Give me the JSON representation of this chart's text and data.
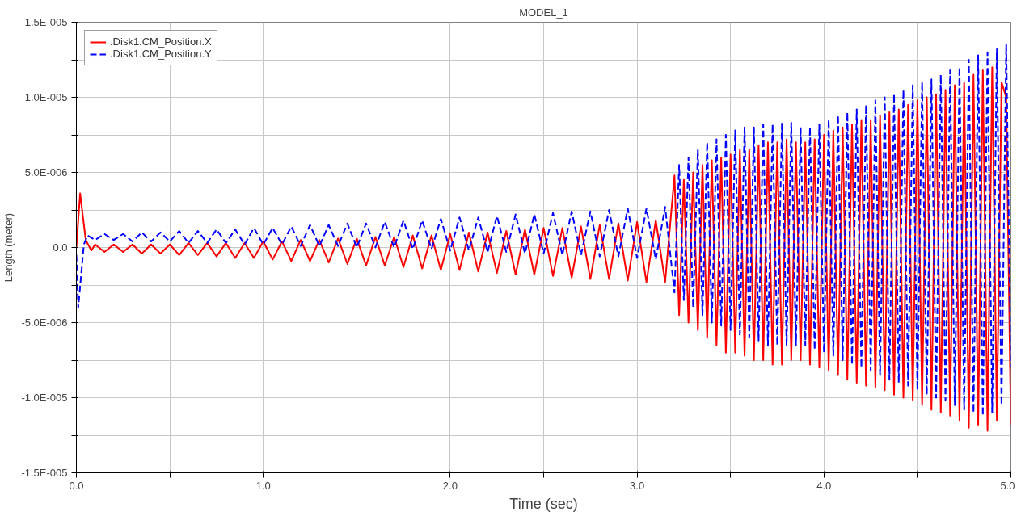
{
  "chart_data": {
    "type": "line",
    "title": "MODEL_1",
    "xlabel": "Time (sec)",
    "ylabel": "Length (meter)",
    "xlim": [
      0,
      5
    ],
    "ylim": [
      -1.5e-05,
      1.5e-05
    ],
    "xticks": [
      {
        "value": 0,
        "label": "0.0"
      },
      {
        "value": 0.5,
        "label": null
      },
      {
        "value": 1,
        "label": "1.0"
      },
      {
        "value": 1.5,
        "label": null
      },
      {
        "value": 2,
        "label": "2.0"
      },
      {
        "value": 2.5,
        "label": null
      },
      {
        "value": 3,
        "label": "3.0"
      },
      {
        "value": 3.5,
        "label": null
      },
      {
        "value": 4,
        "label": "4.0"
      },
      {
        "value": 4.5,
        "label": null
      },
      {
        "value": 5,
        "label": "5.0"
      }
    ],
    "yticks": [
      {
        "value": -1.5e-05,
        "label": "-1.5E-005"
      },
      {
        "value": -1.25e-05,
        "label": null
      },
      {
        "value": -1e-05,
        "label": "-1.0E-005"
      },
      {
        "value": -7.5e-06,
        "label": null
      },
      {
        "value": -5e-06,
        "label": "-5.0E-006"
      },
      {
        "value": -2.5e-06,
        "label": null
      },
      {
        "value": 0,
        "label": "0.0"
      },
      {
        "value": 2.5e-06,
        "label": null
      },
      {
        "value": 5e-06,
        "label": "5.0E-006"
      },
      {
        "value": 7.5e-06,
        "label": null
      },
      {
        "value": 1e-05,
        "label": "1.0E-005"
      },
      {
        "value": 1.25e-05,
        "label": null
      },
      {
        "value": 1.5e-05,
        "label": "1.5E-005"
      }
    ],
    "grid": true,
    "legend": "top left",
    "series": [
      {
        "name": ".Disk1.CM_Position.X",
        "color": "#ff0000",
        "line_style": "solid",
        "x": [
          0,
          0.02,
          0.05,
          0.08,
          0.1,
          0.15,
          0.2,
          0.25,
          0.3,
          0.35,
          0.4,
          0.45,
          0.5,
          0.55,
          0.6,
          0.65,
          0.7,
          0.75,
          0.8,
          0.85,
          0.9,
          0.95,
          1.0,
          1.05,
          1.1,
          1.15,
          1.2,
          1.25,
          1.3,
          1.35,
          1.4,
          1.45,
          1.5,
          1.55,
          1.6,
          1.65,
          1.7,
          1.75,
          1.8,
          1.85,
          1.9,
          1.95,
          2.0,
          2.05,
          2.1,
          2.15,
          2.2,
          2.25,
          2.3,
          2.35,
          2.4,
          2.45,
          2.5,
          2.55,
          2.6,
          2.65,
          2.7,
          2.75,
          2.8,
          2.85,
          2.9,
          2.95,
          3.0,
          3.05,
          3.1,
          3.15,
          3.2,
          3.225,
          3.25,
          3.275,
          3.3,
          3.325,
          3.35,
          3.375,
          3.4,
          3.425,
          3.45,
          3.475,
          3.5,
          3.525,
          3.55,
          3.575,
          3.6,
          3.625,
          3.65,
          3.675,
          3.7,
          3.725,
          3.75,
          3.775,
          3.8,
          3.825,
          3.85,
          3.875,
          3.9,
          3.925,
          3.95,
          3.975,
          4.0,
          4.025,
          4.05,
          4.075,
          4.1,
          4.125,
          4.15,
          4.175,
          4.2,
          4.225,
          4.25,
          4.275,
          4.3,
          4.325,
          4.35,
          4.375,
          4.4,
          4.425,
          4.45,
          4.475,
          4.5,
          4.525,
          4.55,
          4.575,
          4.6,
          4.625,
          4.65,
          4.675,
          4.7,
          4.725,
          4.75,
          4.775,
          4.8,
          4.825,
          4.85,
          4.875,
          4.9,
          4.925,
          4.95,
          4.975,
          5.0
        ],
        "values": [
          0,
          3.6e-06,
          5e-07,
          -2e-07,
          2e-07,
          -3e-07,
          2e-07,
          -3e-07,
          2e-07,
          -4e-07,
          2e-07,
          -4e-07,
          2e-07,
          -5e-07,
          3e-07,
          -5e-07,
          3e-07,
          -6e-07,
          3e-07,
          -7e-07,
          3e-07,
          -7e-07,
          4e-07,
          -8e-07,
          4e-07,
          -9e-07,
          5e-07,
          -9e-07,
          5e-07,
          -1e-06,
          6e-07,
          -1.1e-06,
          6e-07,
          -1.2e-06,
          7e-07,
          -1.2e-06,
          7e-07,
          -1.3e-06,
          8e-07,
          -1.4e-06,
          8e-07,
          -1.5e-06,
          9e-07,
          -1.5e-06,
          1e-06,
          -1.6e-06,
          1e-06,
          -1.7e-06,
          1.1e-06,
          -1.8e-06,
          1.2e-06,
          -1.8e-06,
          1.3e-06,
          -1.9e-06,
          1.3e-06,
          -2e-06,
          1.4e-06,
          -2.1e-06,
          1.5e-06,
          -2.1e-06,
          1.6e-06,
          -2.2e-06,
          1.7e-06,
          -2.3e-06,
          1.8e-06,
          -2.3e-06,
          4.8e-06,
          -4.5e-06,
          4.5e-06,
          -5e-06,
          5e-06,
          -5.5e-06,
          5.5e-06,
          -6e-06,
          5.8e-06,
          -6.5e-06,
          6e-06,
          -7e-06,
          6.2e-06,
          -7e-06,
          6.5e-06,
          -7.2e-06,
          6.5e-06,
          -7.5e-06,
          6.8e-06,
          -7.5e-06,
          7e-06,
          -7.8e-06,
          7e-06,
          -7.8e-06,
          7.2e-06,
          -7.5e-06,
          7e-06,
          -7.5e-06,
          7e-06,
          -7.8e-06,
          7.2e-06,
          -8e-06,
          7.5e-06,
          -8.2e-06,
          7.8e-06,
          -8.5e-06,
          8e-06,
          -8.8e-06,
          8.2e-06,
          -9e-06,
          8.5e-06,
          -9.2e-06,
          8.5e-06,
          -9.3e-06,
          8.8e-06,
          -9.5e-06,
          9e-06,
          -9.8e-06,
          9.2e-06,
          -1e-05,
          9.5e-06,
          -1.02e-05,
          9.8e-06,
          -1.05e-05,
          1e-05,
          -1.08e-05,
          1.02e-05,
          -1.1e-05,
          1.05e-05,
          -1.12e-05,
          1.08e-05,
          -1.15e-05,
          1.1e-05,
          -1.2e-05,
          1.15e-05,
          -1.18e-05,
          1.18e-05,
          -1.22e-05,
          1.2e-05,
          -1.15e-05,
          1.1e-05,
          1e-05,
          -1.18e-05
        ]
      },
      {
        "name": ".Disk1.CM_Position.Y",
        "color": "#0000ff",
        "line_style": "dashed",
        "x": [
          0,
          0.01,
          0.04,
          0.06,
          0.1,
          0.15,
          0.2,
          0.25,
          0.3,
          0.35,
          0.4,
          0.45,
          0.5,
          0.55,
          0.6,
          0.65,
          0.7,
          0.75,
          0.8,
          0.85,
          0.9,
          0.95,
          1.0,
          1.05,
          1.1,
          1.15,
          1.2,
          1.25,
          1.3,
          1.35,
          1.4,
          1.45,
          1.5,
          1.55,
          1.6,
          1.65,
          1.7,
          1.75,
          1.8,
          1.85,
          1.9,
          1.95,
          2.0,
          2.05,
          2.1,
          2.15,
          2.2,
          2.25,
          2.3,
          2.35,
          2.4,
          2.45,
          2.5,
          2.55,
          2.6,
          2.65,
          2.7,
          2.75,
          2.8,
          2.85,
          2.9,
          2.95,
          3.0,
          3.05,
          3.1,
          3.15,
          3.2,
          3.225,
          3.25,
          3.275,
          3.3,
          3.325,
          3.35,
          3.375,
          3.4,
          3.425,
          3.45,
          3.475,
          3.5,
          3.525,
          3.55,
          3.575,
          3.6,
          3.625,
          3.65,
          3.675,
          3.7,
          3.725,
          3.75,
          3.775,
          3.8,
          3.825,
          3.85,
          3.875,
          3.9,
          3.925,
          3.95,
          3.975,
          4.0,
          4.025,
          4.05,
          4.075,
          4.1,
          4.125,
          4.15,
          4.175,
          4.2,
          4.225,
          4.25,
          4.275,
          4.3,
          4.325,
          4.35,
          4.375,
          4.4,
          4.425,
          4.45,
          4.475,
          4.5,
          4.525,
          4.55,
          4.575,
          4.6,
          4.625,
          4.65,
          4.675,
          4.7,
          4.725,
          4.75,
          4.775,
          4.8,
          4.825,
          4.85,
          4.875,
          4.9,
          4.925,
          4.95,
          4.975,
          5.0
        ],
        "values": [
          -5e-07,
          -4e-06,
          2e-07,
          8e-07,
          5e-07,
          9e-07,
          5e-07,
          9e-07,
          4e-07,
          1e-06,
          4e-07,
          1e-06,
          4e-07,
          1.1e-06,
          3e-07,
          1.1e-06,
          3e-07,
          1.2e-06,
          3e-07,
          1.2e-06,
          2e-07,
          1.3e-06,
          2e-07,
          1.3e-06,
          2e-07,
          1.4e-06,
          1e-07,
          1.5e-06,
          1e-07,
          1.5e-06,
          1e-07,
          1.6e-06,
          0,
          1.6e-06,
          0,
          1.7e-06,
          0,
          1.8e-06,
          -1e-07,
          1.8e-06,
          -1e-07,
          1.9e-06,
          -2e-07,
          2e-06,
          -2e-07,
          2e-06,
          -3e-07,
          2.1e-06,
          -3e-07,
          2.2e-06,
          -4e-07,
          2.2e-06,
          -4e-07,
          2.3e-06,
          -5e-07,
          2.4e-06,
          -5e-07,
          2.4e-06,
          -6e-07,
          2.5e-06,
          -6e-07,
          2.6e-06,
          -7e-07,
          2.6e-06,
          -8e-07,
          2.7e-06,
          -3e-06,
          5.5e-06,
          -3.5e-06,
          6e-06,
          -4e-06,
          6.5e-06,
          -4.5e-06,
          7e-06,
          -5e-06,
          7.2e-06,
          -5.2e-06,
          7.5e-06,
          -5.5e-06,
          7.8e-06,
          -5.8e-06,
          8e-06,
          -6e-06,
          8e-06,
          -6.2e-06,
          8.2e-06,
          -6.5e-06,
          8.2e-06,
          -6.5e-06,
          8.3e-06,
          -6.5e-06,
          8.3e-06,
          -6.5e-06,
          8e-06,
          -6.5e-06,
          8e-06,
          -6.8e-06,
          8.2e-06,
          -7e-06,
          8.5e-06,
          -7.2e-06,
          8.8e-06,
          -7.5e-06,
          9e-06,
          -7.8e-06,
          9.2e-06,
          -8e-06,
          9.5e-06,
          -8.2e-06,
          9.8e-06,
          -8.5e-06,
          1e-05,
          -8.8e-06,
          1.02e-05,
          -9e-06,
          1.05e-05,
          -9.2e-06,
          1.08e-05,
          -9.5e-06,
          1.1e-05,
          -9.8e-06,
          1.12e-05,
          -1e-05,
          1.15e-05,
          -1.02e-05,
          1.18e-05,
          -1.05e-05,
          1.2e-05,
          -1.08e-05,
          1.25e-05,
          -1.1e-05,
          1.28e-05,
          -1.12e-05,
          1.3e-05,
          -1.1e-05,
          1.32e-05,
          -1.05e-05,
          1.35e-05,
          -8e-06
        ]
      }
    ]
  }
}
